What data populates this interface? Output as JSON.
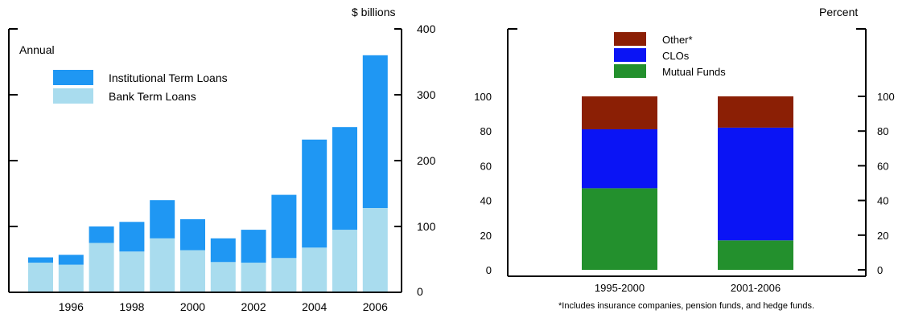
{
  "chart_data": [
    {
      "type": "bar",
      "stacked": true,
      "annotation": "Annual",
      "ylabel": "$ billions",
      "ylim": [
        0,
        400
      ],
      "yticks": [
        0,
        100,
        200,
        300,
        400
      ],
      "categories": [
        1995,
        1996,
        1997,
        1998,
        1999,
        2000,
        2001,
        2002,
        2003,
        2004,
        2005,
        2006
      ],
      "xtick_labels": [
        "1996",
        "1998",
        "2000",
        "2002",
        "2004",
        "2006"
      ],
      "legend_position": "top-left",
      "series": [
        {
          "name": "Bank Term Loans",
          "color": "#a9dcee",
          "values": [
            45,
            42,
            75,
            62,
            82,
            64,
            46,
            45,
            52,
            68,
            95,
            128
          ]
        },
        {
          "name": "Institutional Term Loans",
          "color": "#1f97f3",
          "values": [
            8,
            15,
            25,
            45,
            58,
            47,
            36,
            50,
            96,
            164,
            156,
            232
          ]
        }
      ]
    },
    {
      "type": "bar",
      "stacked": true,
      "ylabel": "Percent",
      "ylim": [
        0,
        100
      ],
      "yticks": [
        0,
        20,
        40,
        60,
        80,
        100
      ],
      "categories": [
        "1995-2000",
        "2001-2006"
      ],
      "legend_position": "top",
      "series": [
        {
          "name": "Mutual Funds",
          "color": "#23902d",
          "values": [
            47,
            17
          ]
        },
        {
          "name": "CLOs",
          "color": "#0a14f5",
          "values": [
            34,
            65
          ]
        },
        {
          "name": "Other*",
          "color": "#8b1f05",
          "values": [
            19,
            18
          ]
        }
      ],
      "footnote": "*Includes insurance companies, pension funds, and hedge funds."
    }
  ]
}
